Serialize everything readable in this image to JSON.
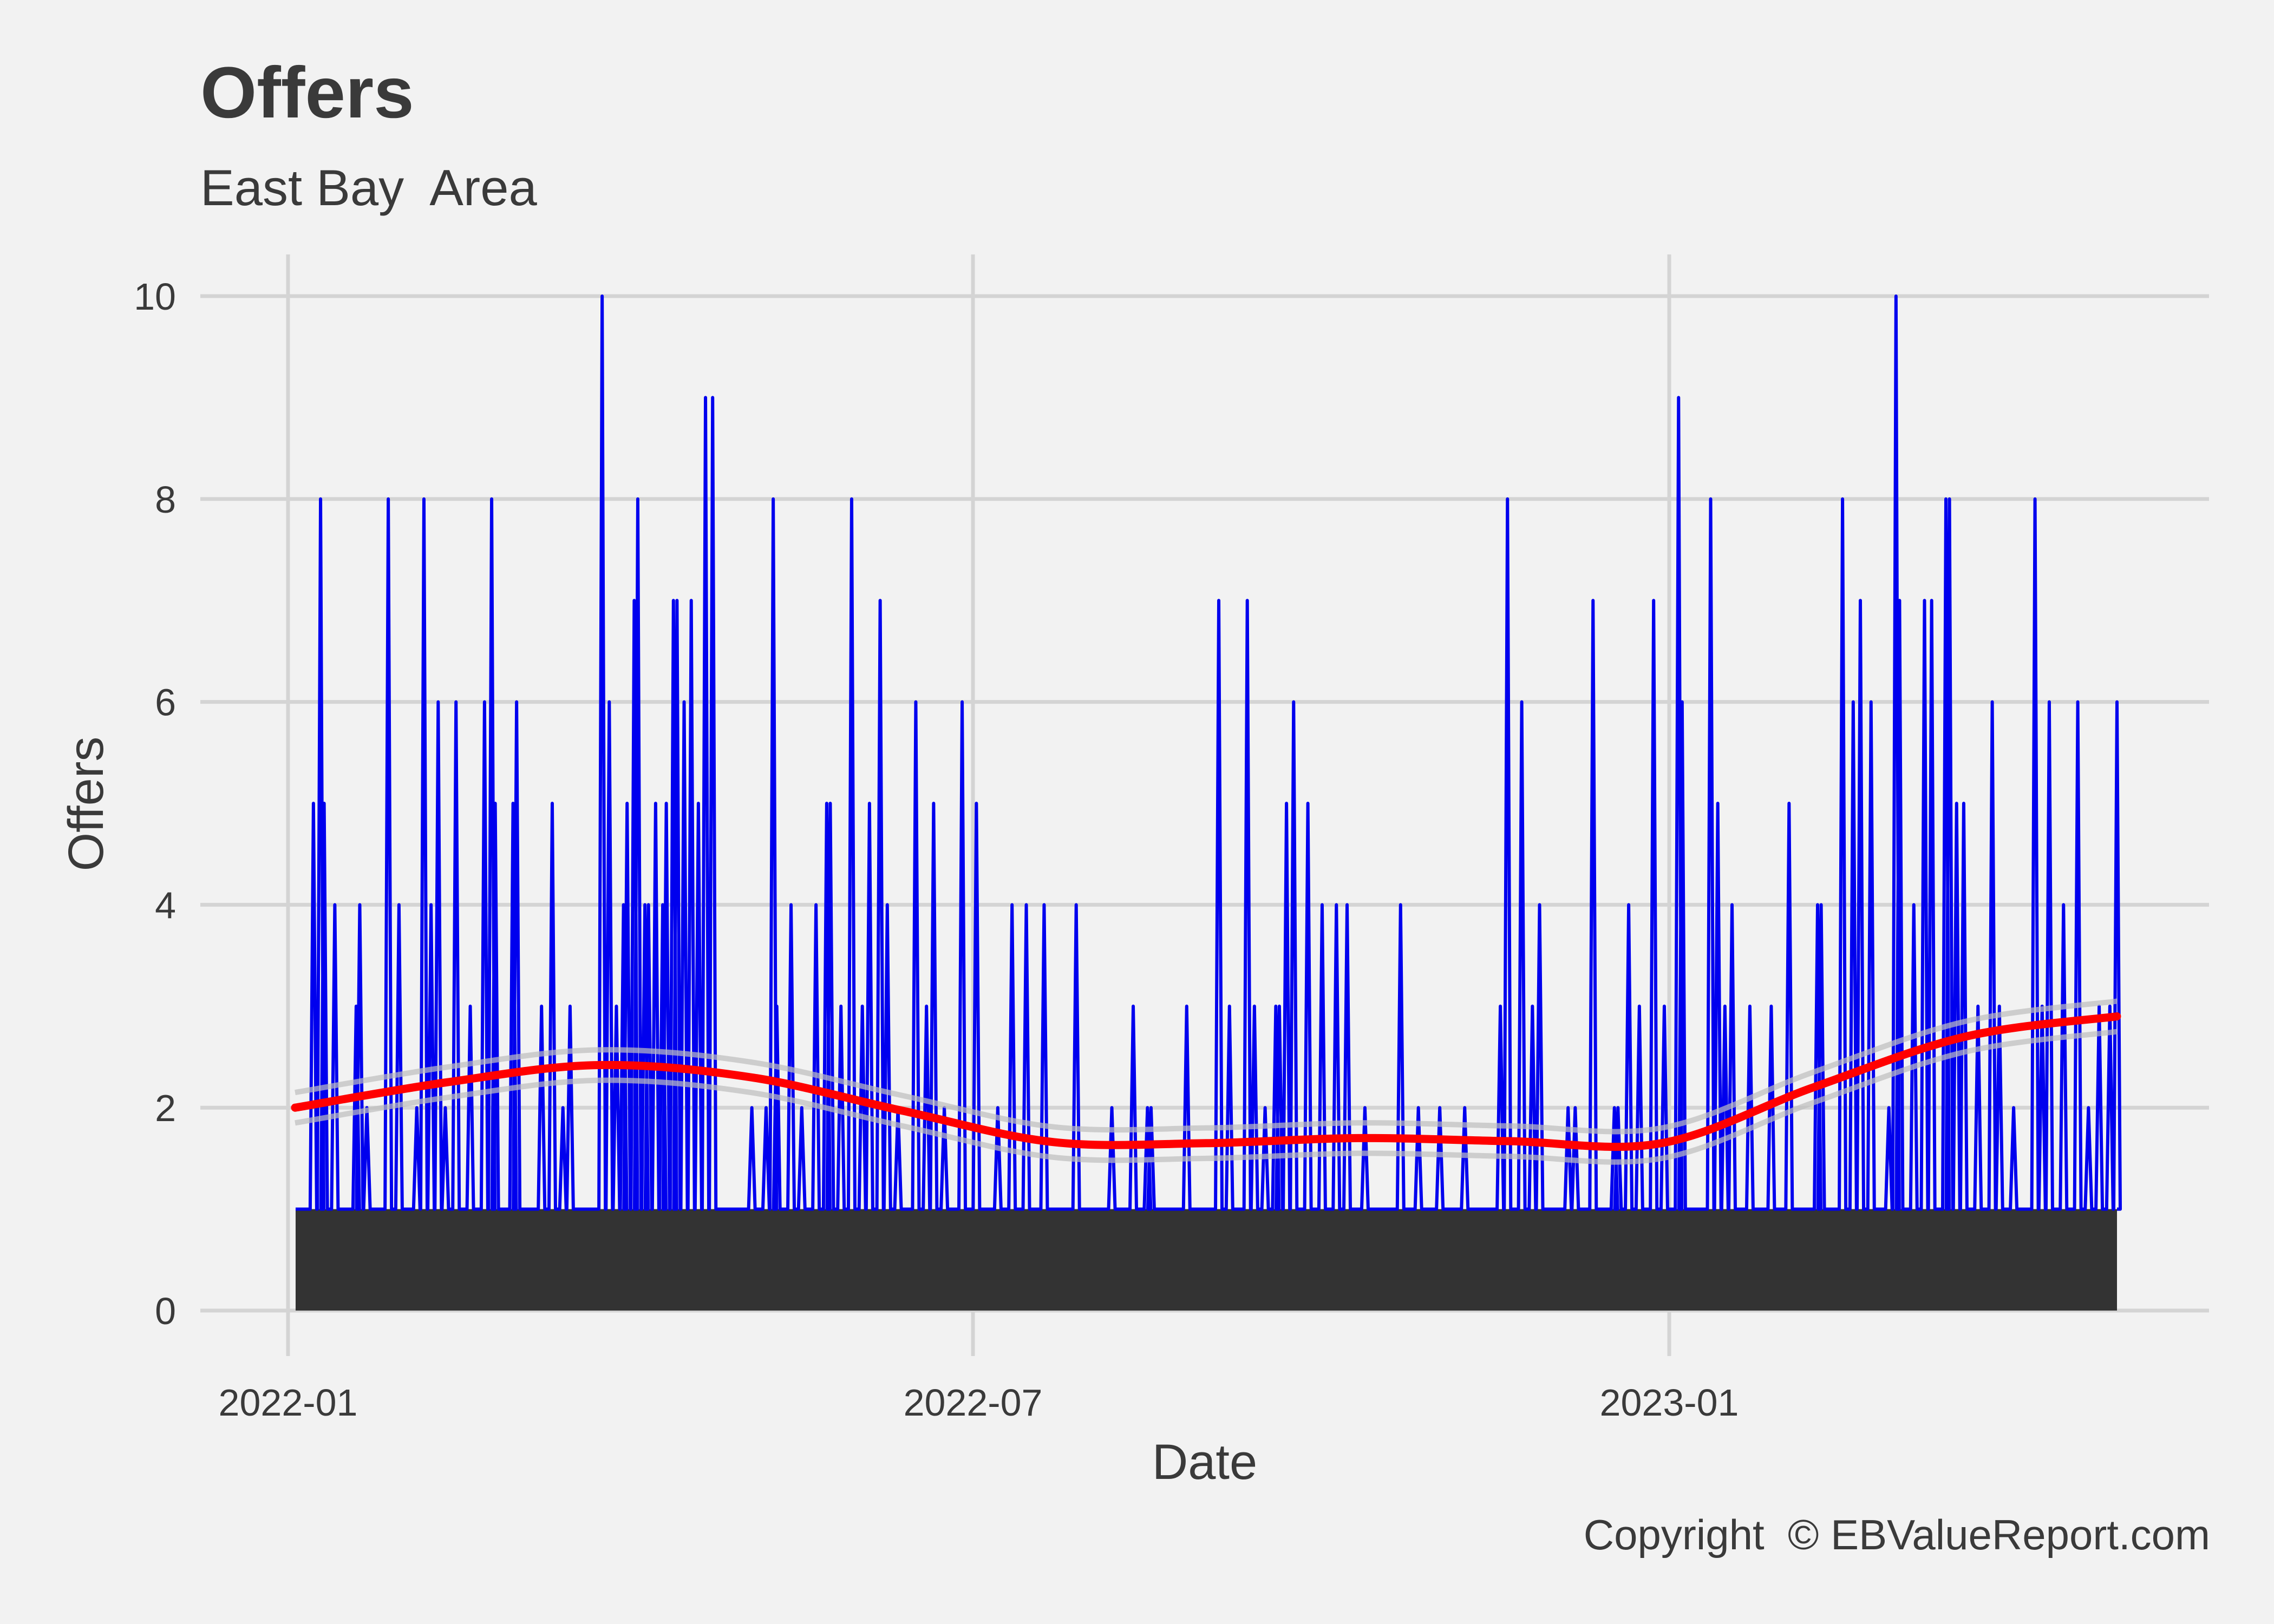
{
  "chart_data": {
    "type": "line",
    "title": "Offers",
    "subtitle": "East Bay  Area",
    "xlabel": "Date",
    "ylabel": "Offers",
    "caption": "Copyright  © EBValueReport.com",
    "x_range": [
      "2022-01-01",
      "2023-04-25"
    ],
    "ylim": [
      0,
      10
    ],
    "x_ticks": [
      {
        "date": "2022-01-01",
        "label": "2022-01"
      },
      {
        "date": "2022-07-01",
        "label": "2022-07"
      },
      {
        "date": "2023-01-01",
        "label": "2023-01"
      }
    ],
    "y_ticks": [
      0,
      2,
      4,
      6,
      8,
      10
    ],
    "grid": true,
    "legend": "none",
    "colors": {
      "background": "#f2f2f2",
      "grid": "#d4d4d4",
      "line": "#0000ee",
      "fill": "#333333",
      "smooth": "#ff0000",
      "ribbon": "#bdbdbd",
      "text": "#3a3a3a"
    },
    "series": [
      {
        "type": "line",
        "baseline": 1,
        "x_start": "2022-01-03",
        "x_end": "2023-04-24",
        "spikes": [
          [
            "2022-01-08",
            5
          ],
          [
            "2022-01-10",
            8
          ],
          [
            "2022-01-11",
            5
          ],
          [
            "2022-01-14",
            4
          ],
          [
            "2022-01-20",
            3
          ],
          [
            "2022-01-21",
            4
          ],
          [
            "2022-01-23",
            2
          ],
          [
            "2022-01-29",
            8
          ],
          [
            "2022-02-01",
            4
          ],
          [
            "2022-02-06",
            2
          ],
          [
            "2022-02-08",
            8
          ],
          [
            "2022-02-10",
            4
          ],
          [
            "2022-02-12",
            6
          ],
          [
            "2022-02-14",
            2
          ],
          [
            "2022-02-17",
            6
          ],
          [
            "2022-02-21",
            3
          ],
          [
            "2022-02-25",
            6
          ],
          [
            "2022-02-27",
            8
          ],
          [
            "2022-02-28",
            5
          ],
          [
            "2022-03-05",
            5
          ],
          [
            "2022-03-06",
            6
          ],
          [
            "2022-03-13",
            3
          ],
          [
            "2022-03-16",
            5
          ],
          [
            "2022-03-19",
            2
          ],
          [
            "2022-03-21",
            3
          ],
          [
            "2022-03-30",
            10
          ],
          [
            "2022-04-01",
            6
          ],
          [
            "2022-04-03",
            3
          ],
          [
            "2022-04-05",
            4
          ],
          [
            "2022-04-06",
            5
          ],
          [
            "2022-04-08",
            7
          ],
          [
            "2022-04-09",
            8
          ],
          [
            "2022-04-11",
            4
          ],
          [
            "2022-04-12",
            4
          ],
          [
            "2022-04-14",
            5
          ],
          [
            "2022-04-16",
            4
          ],
          [
            "2022-04-17",
            5
          ],
          [
            "2022-04-19",
            7
          ],
          [
            "2022-04-20",
            7
          ],
          [
            "2022-04-22",
            6
          ],
          [
            "2022-04-24",
            7
          ],
          [
            "2022-04-26",
            5
          ],
          [
            "2022-04-28",
            9
          ],
          [
            "2022-04-30",
            9
          ],
          [
            "2022-05-11",
            2
          ],
          [
            "2022-05-15",
            2
          ],
          [
            "2022-05-17",
            8
          ],
          [
            "2022-05-18",
            3
          ],
          [
            "2022-05-22",
            4
          ],
          [
            "2022-05-25",
            2
          ],
          [
            "2022-05-29",
            4
          ],
          [
            "2022-06-01",
            5
          ],
          [
            "2022-06-02",
            5
          ],
          [
            "2022-06-05",
            3
          ],
          [
            "2022-06-08",
            8
          ],
          [
            "2022-06-11",
            3
          ],
          [
            "2022-06-13",
            5
          ],
          [
            "2022-06-16",
            7
          ],
          [
            "2022-06-18",
            4
          ],
          [
            "2022-06-21",
            2
          ],
          [
            "2022-06-26",
            6
          ],
          [
            "2022-06-29",
            3
          ],
          [
            "2022-07-01",
            5
          ],
          [
            "2022-07-04",
            2
          ],
          [
            "2022-07-09",
            6
          ],
          [
            "2022-07-13",
            5
          ],
          [
            "2022-07-19",
            2
          ],
          [
            "2022-07-23",
            4
          ],
          [
            "2022-07-27",
            4
          ],
          [
            "2022-08-01",
            4
          ],
          [
            "2022-08-10",
            4
          ],
          [
            "2022-08-20",
            2
          ],
          [
            "2022-08-26",
            3
          ],
          [
            "2022-08-30",
            2
          ],
          [
            "2022-08-31",
            2
          ],
          [
            "2022-09-10",
            3
          ],
          [
            "2022-09-19",
            7
          ],
          [
            "2022-09-22",
            3
          ],
          [
            "2022-09-27",
            7
          ],
          [
            "2022-09-29",
            3
          ],
          [
            "2022-10-02",
            2
          ],
          [
            "2022-10-05",
            3
          ],
          [
            "2022-10-06",
            3
          ],
          [
            "2022-10-08",
            5
          ],
          [
            "2022-10-10",
            6
          ],
          [
            "2022-10-14",
            5
          ],
          [
            "2022-10-18",
            4
          ],
          [
            "2022-10-22",
            4
          ],
          [
            "2022-10-25",
            4
          ],
          [
            "2022-10-30",
            2
          ],
          [
            "2022-11-09",
            4
          ],
          [
            "2022-11-14",
            2
          ],
          [
            "2022-11-20",
            2
          ],
          [
            "2022-11-27",
            2
          ],
          [
            "2022-12-07",
            3
          ],
          [
            "2022-12-09",
            8
          ],
          [
            "2022-12-13",
            6
          ],
          [
            "2022-12-16",
            3
          ],
          [
            "2022-12-18",
            4
          ],
          [
            "2022-12-26",
            2
          ],
          [
            "2022-12-28",
            2
          ],
          [
            "2023-01-02",
            7
          ],
          [
            "2023-01-08",
            2
          ],
          [
            "2023-01-09",
            2
          ],
          [
            "2023-01-12",
            4
          ],
          [
            "2023-01-15",
            3
          ],
          [
            "2023-01-19",
            7
          ],
          [
            "2023-01-22",
            3
          ],
          [
            "2023-01-26",
            9
          ],
          [
            "2023-01-27",
            6
          ],
          [
            "2023-02-04",
            8
          ],
          [
            "2023-02-06",
            5
          ],
          [
            "2023-02-08",
            3
          ],
          [
            "2023-02-10",
            4
          ],
          [
            "2023-02-15",
            3
          ],
          [
            "2023-02-21",
            3
          ],
          [
            "2023-02-26",
            5
          ],
          [
            "2023-03-06",
            4
          ],
          [
            "2023-03-07",
            4
          ],
          [
            "2023-03-13",
            8
          ],
          [
            "2023-03-16",
            6
          ],
          [
            "2023-03-18",
            7
          ],
          [
            "2023-03-21",
            6
          ],
          [
            "2023-03-26",
            2
          ],
          [
            "2023-03-28",
            10
          ],
          [
            "2023-03-29",
            7
          ],
          [
            "2023-04-02",
            4
          ],
          [
            "2023-04-05",
            7
          ],
          [
            "2023-04-07",
            7
          ],
          [
            "2023-04-11",
            8
          ],
          [
            "2023-04-12",
            8
          ],
          [
            "2023-04-14",
            5
          ],
          [
            "2023-04-16",
            5
          ],
          [
            "2023-04-20",
            3
          ],
          [
            "2023-04-24",
            6
          ],
          [
            "2023-04-26",
            3
          ],
          [
            "2023-04-30",
            2
          ],
          [
            "2023-05-06",
            8
          ],
          [
            "2023-05-08",
            3
          ],
          [
            "2023-05-10",
            6
          ],
          [
            "2023-05-14",
            4
          ],
          [
            "2023-05-18",
            6
          ],
          [
            "2023-05-21",
            2
          ],
          [
            "2023-05-24",
            3
          ],
          [
            "2023-05-27",
            3
          ],
          [
            "2023-05-29",
            6
          ]
        ]
      },
      {
        "type": "area",
        "baseline": 0,
        "x_start": "2022-01-03",
        "x_end": "2023-06-01",
        "value": 1
      },
      {
        "type": "smooth",
        "x": [
          "2022-01-03",
          "2022-02-15",
          "2022-03-31",
          "2022-05-14",
          "2022-06-27",
          "2022-08-10",
          "2022-09-23",
          "2022-11-06",
          "2022-12-20",
          "2023-02-02",
          "2023-03-18",
          "2023-05-01",
          "2023-06-01"
        ],
        "y": [
          2.0,
          2.25,
          2.42,
          2.3,
          1.97,
          1.66,
          1.65,
          1.7,
          1.67,
          1.65,
          2.2,
          2.7,
          2.9
        ],
        "ribbon": 0.15
      }
    ]
  }
}
